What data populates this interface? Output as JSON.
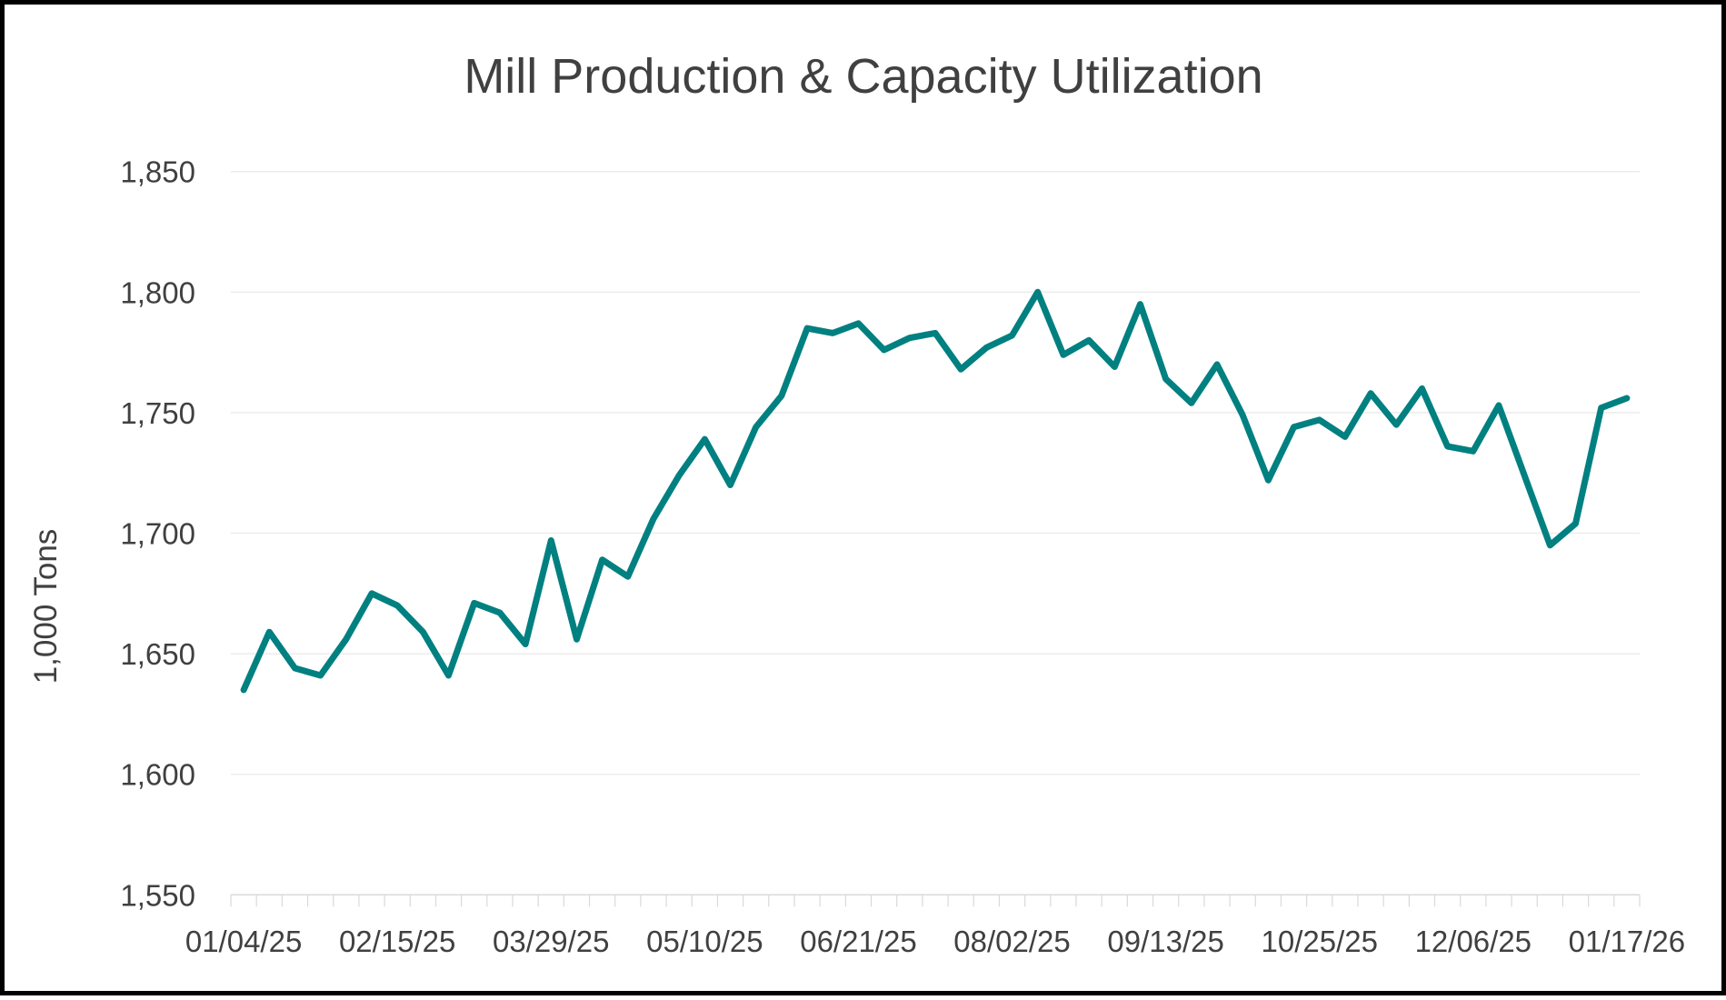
{
  "chart_data": {
    "type": "line",
    "title": "Mill Production & Capacity Utilization",
    "xlabel": "",
    "ylabel": "1,000 Tons",
    "ylim": [
      1550,
      1850
    ],
    "yticks": [
      1550,
      1600,
      1650,
      1700,
      1750,
      1800,
      1850
    ],
    "ytick_labels": [
      "1,550",
      "1,600",
      "1,650",
      "1,700",
      "1,750",
      "1,800",
      "1,850"
    ],
    "grid": true,
    "legend": "none",
    "x_tick_labels": [
      {
        "index": 0,
        "label": "01/04/25"
      },
      {
        "index": 6,
        "label": "02/15/25"
      },
      {
        "index": 12,
        "label": "03/29/25"
      },
      {
        "index": 18,
        "label": "05/10/25"
      },
      {
        "index": 24,
        "label": "06/21/25"
      },
      {
        "index": 30,
        "label": "08/02/25"
      },
      {
        "index": 36,
        "label": "09/13/25"
      },
      {
        "index": 42,
        "label": "10/25/25"
      },
      {
        "index": 48,
        "label": "12/06/25"
      },
      {
        "index": 54,
        "label": "01/17/26"
      }
    ],
    "series": [
      {
        "name": "Mill Production",
        "color": "#008080",
        "values": [
          1635,
          1659,
          1644,
          1641,
          1656,
          1675,
          1670,
          1659,
          1641,
          1671,
          1667,
          1654,
          1697,
          1656,
          1689,
          1682,
          1706,
          1724,
          1739,
          1720,
          1744,
          1757,
          1785,
          1783,
          1787,
          1776,
          1781,
          1783,
          1768,
          1777,
          1782,
          1800,
          1774,
          1780,
          1769,
          1795,
          1764,
          1754,
          1770,
          1749,
          1722,
          1744,
          1747,
          1740,
          1758,
          1745,
          1760,
          1736,
          1734,
          1753,
          1724,
          1695,
          1704,
          1752,
          1756
        ]
      }
    ]
  }
}
